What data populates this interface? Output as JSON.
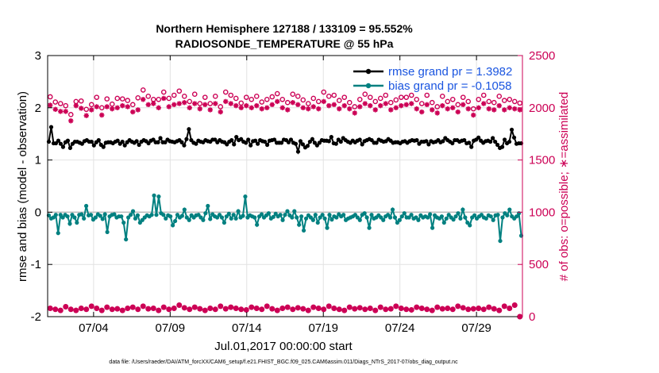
{
  "chart_data": {
    "type": "line",
    "title_line1": "Northern Hemisphere 127188 / 133109 = 95.552%",
    "title_line2": "RADIOSONDE_TEMPERATURE @ 55 hPa",
    "ylabel_left": "rmse and bias (model - observation)",
    "ylabel_right": "# of obs: o=possible; ∗=assimilated",
    "xlabel": "Jul.01,2017 00:00:00 start",
    "footnote": "data file: /Users/raeder/DAI/ATM_forcXX/CAM6_setup/f.e21.FHIST_BGC.f09_025.CAM6assim.011/Diags_NTrS_2017-07/obs_diag_output.nc",
    "ylim_left": [
      -2,
      3
    ],
    "yticks_left": [
      "-2",
      "-1",
      "0",
      "1",
      "2",
      "3"
    ],
    "ylim_right": [
      0,
      2500
    ],
    "yticks_right": [
      "0",
      "500",
      "1000",
      "1500",
      "2000",
      "2500"
    ],
    "xlim": [
      0,
      31
    ],
    "xticks": [
      {
        "label": "07/04",
        "x": 3
      },
      {
        "label": "07/09",
        "x": 8
      },
      {
        "label": "07/14",
        "x": 13
      },
      {
        "label": "07/19",
        "x": 18
      },
      {
        "label": "07/24",
        "x": 23
      },
      {
        "label": "07/29",
        "x": 28
      }
    ],
    "legend": [
      "rmse grand pr = 1.3982",
      "bias grand pr = -0.1058"
    ],
    "colors": {
      "rmse": "#000000",
      "bias": "#008080",
      "obs": "#cc0055",
      "zero": "#bbbbbb",
      "grid": "#e2e2e2"
    },
    "rmse": [
      1.35,
      1.63,
      1.32,
      1.32,
      1.37,
      1.31,
      1.25,
      1.34,
      1.37,
      1.23,
      1.31,
      1.35,
      1.35,
      1.33,
      1.31,
      1.36,
      1.38,
      1.35,
      1.35,
      1.28,
      1.34,
      1.38,
      1.29,
      1.25,
      1.33,
      1.34,
      1.34,
      1.32,
      1.35,
      1.37,
      1.31,
      1.35,
      1.28,
      1.34,
      1.38,
      1.35,
      1.33,
      1.36,
      1.29,
      1.35,
      1.38,
      1.36,
      1.32,
      1.37,
      1.39,
      1.34,
      1.34,
      1.42,
      1.34,
      1.34,
      1.39,
      1.36,
      1.35,
      1.34,
      1.36,
      1.38,
      1.34,
      1.28,
      1.4,
      1.59,
      1.38,
      1.33,
      1.31,
      1.37,
      1.35,
      1.34,
      1.38,
      1.36,
      1.35,
      1.39,
      1.39,
      1.34,
      1.38,
      1.35,
      1.34,
      1.3,
      1.35,
      1.38,
      1.3,
      1.44,
      1.38,
      1.4,
      1.35,
      1.33,
      1.39,
      1.28,
      1.36,
      1.37,
      1.31,
      1.38,
      1.36,
      1.35,
      1.29,
      1.37,
      1.38,
      1.39,
      1.33,
      1.33,
      1.33,
      1.39,
      1.38,
      1.34,
      1.39,
      1.33,
      1.31,
      1.16,
      1.36,
      1.3,
      1.24,
      1.27,
      1.35,
      1.4,
      1.33,
      1.28,
      1.33,
      1.38,
      1.37,
      1.37,
      1.36,
      1.44,
      1.32,
      1.31,
      1.39,
      1.35,
      1.42,
      1.38,
      1.35,
      1.33,
      1.37,
      1.34,
      1.37,
      1.39,
      1.3,
      1.36,
      1.38,
      1.4,
      1.38,
      1.33,
      1.33,
      1.39,
      1.37,
      1.35,
      1.36,
      1.4,
      1.37,
      1.33,
      1.34,
      1.34,
      1.32,
      1.35,
      1.36,
      1.33,
      1.36,
      1.38,
      1.37,
      1.38,
      1.31,
      1.35,
      1.35,
      1.36,
      1.3,
      1.36,
      1.34,
      1.35,
      1.38,
      1.34,
      1.36,
      1.42,
      1.38,
      1.35,
      1.32,
      1.38,
      1.38,
      1.35,
      1.37,
      1.38,
      1.32,
      1.33,
      1.25,
      1.37,
      1.39,
      1.43,
      1.37,
      1.33,
      1.36,
      1.37,
      1.35,
      1.42,
      1.35,
      1.29,
      1.23,
      1.25,
      1.39,
      1.32,
      1.35,
      1.58,
      1.43,
      1.31,
      1.32,
      1.32
    ],
    "bias": [
      -0.06,
      -0.12,
      -0.1,
      -0.05,
      -0.4,
      -0.05,
      -0.1,
      -0.05,
      -0.08,
      -0.22,
      -0.05,
      -0.1,
      -0.2,
      -0.05,
      -0.04,
      -0.12,
      0.12,
      -0.06,
      -0.05,
      -0.14,
      -0.1,
      -0.04,
      -0.07,
      -0.13,
      -0.04,
      -0.38,
      -0.08,
      -0.05,
      -0.04,
      -0.1,
      -0.08,
      -0.08,
      -0.2,
      -0.52,
      -0.1,
      -0.05,
      0.02,
      -0.12,
      -0.06,
      -0.2,
      -0.15,
      -0.1,
      -0.06,
      -0.08,
      -0.05,
      0.32,
      -0.05,
      0.3,
      -0.02,
      -0.05,
      -0.12,
      -0.06,
      -0.08,
      -0.25,
      -0.17,
      -0.05,
      -0.1,
      -0.07,
      0.05,
      -0.1,
      -0.15,
      -0.06,
      -0.1,
      -0.06,
      -0.05,
      -0.1,
      -0.15,
      -0.02,
      0.12,
      -0.13,
      -0.04,
      -0.08,
      -0.1,
      -0.05,
      -0.1,
      -0.2,
      -0.08,
      -0.03,
      -0.12,
      -0.05,
      -0.12,
      0.02,
      -0.1,
      -0.07,
      0.3,
      -0.1,
      -0.06,
      -0.08,
      -0.1,
      -0.24,
      -0.08,
      -0.04,
      -0.1,
      -0.06,
      -0.02,
      -0.12,
      -0.09,
      -0.03,
      -0.08,
      -0.05,
      -0.15,
      -0.05,
      0.02,
      -0.06,
      -0.1,
      0.02,
      -0.1,
      -0.24,
      -0.08,
      -0.35,
      -0.12,
      -0.06,
      -0.1,
      -0.15,
      -0.05,
      -0.2,
      -0.1,
      -0.05,
      -0.12,
      -0.3,
      -0.05,
      -0.14,
      -0.08,
      -0.1,
      -0.04,
      -0.08,
      -0.05,
      -0.15,
      -0.12,
      -0.1,
      -0.08,
      -0.05,
      -0.1,
      -0.15,
      -0.05,
      -0.02,
      -0.1,
      -0.3,
      -0.05,
      -0.12,
      -0.1,
      -0.06,
      -0.1,
      -0.15,
      -0.08,
      -0.05,
      -0.1,
      0.05,
      -0.1,
      -0.2,
      -0.15,
      -0.08,
      -0.02,
      -0.1,
      -0.1,
      -0.05,
      -0.12,
      -0.1,
      -0.15,
      -0.06,
      -0.1,
      -0.08,
      -0.1,
      -0.04,
      -0.3,
      -0.06,
      -0.1,
      -0.12,
      -0.08,
      -0.2,
      -0.12,
      -0.05,
      -0.1,
      -0.14,
      -0.08,
      -0.02,
      -0.12,
      0.05,
      -0.1,
      -0.2,
      -0.25,
      -0.1,
      -0.06,
      -0.12,
      -0.08,
      -0.05,
      -0.1,
      -0.12,
      -0.06,
      -0.08,
      -0.15,
      -0.06,
      -0.05,
      -0.55,
      -0.1,
      -0.02,
      -0.06,
      0.05,
      -0.08,
      -0.12,
      -0.08,
      -0.02,
      -0.45
    ],
    "possible": [
      2105,
      2055,
      2040,
      2020,
      1935,
      2060,
      2065,
      1985,
      2030,
      2100,
      2000,
      2085,
      2035,
      2090,
      2085,
      2070,
      2030,
      2095,
      2170,
      2110,
      2080,
      2080,
      2150,
      2090,
      2120,
      2160,
      2110,
      2060,
      2130,
      2040,
      2100,
      2040,
      2110,
      2010,
      2150,
      2120,
      2090,
      2045,
      2100,
      2080,
      2110,
      2055,
      2080,
      2105,
      2135,
      2080,
      2050,
      2130,
      2110,
      2075,
      2040,
      2090,
      2060,
      2150,
      2110,
      2120,
      2070,
      2100,
      2050,
      2010,
      2080,
      2130,
      2100,
      2060,
      2090,
      2120,
      2050,
      2075,
      2100,
      2100,
      2120,
      2080,
      2040,
      2120,
      2050,
      2010,
      2110,
      2060,
      2080,
      2030,
      2100,
      2060,
      1990,
      2080,
      2120,
      2060,
      2050,
      2110,
      2070,
      2080,
      2060,
      2045
    ],
    "assimilated": [
      2025,
      1985,
      1965,
      1965,
      1875,
      2020,
      1995,
      1925,
      1980,
      2010,
      1930,
      2010,
      1990,
      2000,
      2020,
      2010,
      1960,
      1980,
      2080,
      2030,
      2040,
      2000,
      2090,
      2010,
      2030,
      2040,
      2050,
      2000,
      2040,
      1990,
      2030,
      1980,
      2040,
      1960,
      2060,
      2040,
      2020,
      2000,
      2020,
      2000,
      2020,
      1990,
      2000,
      2030,
      2060,
      2000,
      1980,
      2050,
      2030,
      2000,
      1990,
      2010,
      1990,
      2060,
      2020,
      2030,
      1990,
      2020,
      1990,
      1950,
      2010,
      2040,
      2020,
      1980,
      2020,
      2040,
      1980,
      2000,
      2020,
      2030,
      2040,
      1990,
      1960,
      2030,
      1980,
      1950,
      2020,
      1990,
      2000,
      1960,
      2030,
      1990,
      1930,
      2000,
      2040,
      1990,
      1980,
      2020,
      1980,
      2000,
      1990,
      1980
    ],
    "low_obs": [
      80,
      70,
      60,
      95,
      70,
      60,
      80,
      70,
      100,
      80,
      60,
      90,
      70,
      75,
      60,
      80,
      90,
      70,
      100,
      75,
      80,
      60,
      90,
      70,
      80,
      110,
      85,
      70,
      90,
      75,
      60,
      80,
      70,
      100,
      75,
      90,
      80,
      70,
      65,
      90,
      80,
      70,
      100,
      75,
      60,
      80,
      90,
      70,
      85,
      75,
      60,
      90,
      80,
      70,
      100,
      80,
      70,
      60,
      90,
      75,
      85,
      70,
      80,
      60,
      90,
      70,
      75,
      100,
      80,
      70,
      65,
      90,
      80,
      70,
      60,
      90,
      75,
      80,
      70,
      100,
      85,
      70,
      75,
      80,
      70,
      90,
      75,
      60,
      100,
      80,
      110,
      0
    ]
  }
}
